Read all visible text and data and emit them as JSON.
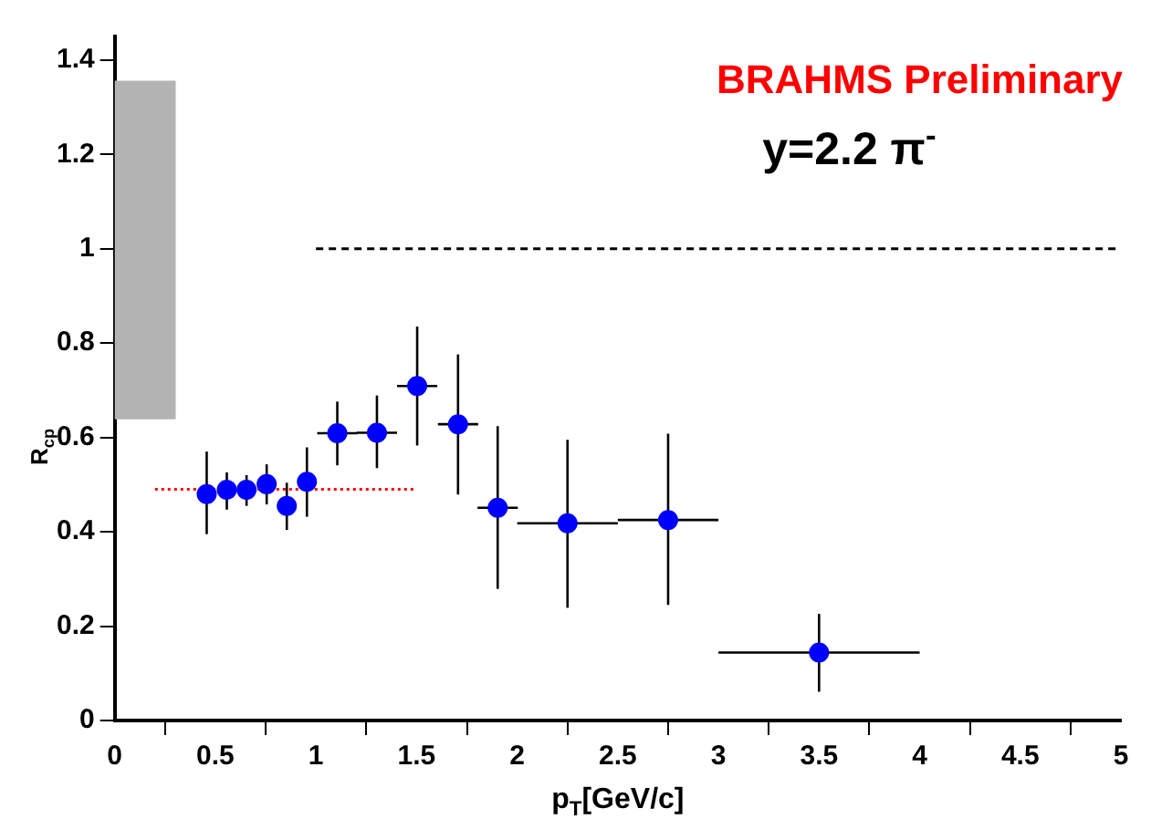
{
  "chart_data": {
    "type": "scatter",
    "xlabel": "p$_{T}$[GeV/c]",
    "ylabel": "R$_{cp}$",
    "annotations": [
      "BRAHMS Preliminary",
      "y=2.2 π$^{-}$"
    ],
    "xlim": [
      0,
      5
    ],
    "xticks": [
      0,
      0.5,
      1,
      1.5,
      2,
      2.5,
      3,
      3.5,
      4,
      4.5,
      5
    ],
    "ylim": [
      0,
      1.45
    ],
    "yticks": [
      0,
      0.2,
      0.4,
      0.6,
      0.8,
      1,
      1.2,
      1.4
    ],
    "grid": false,
    "legend": false,
    "marker": "circle",
    "series": [
      {
        "type": "bar",
        "color": "#b3b3b3",
        "x": [
          0.15
        ],
        "values": [
          0.715
        ],
        "base": [
          0.64
        ]
      },
      {
        "type": "line",
        "color": "#000000",
        "line_style": "dashed",
        "marker": "none",
        "x": [
          1,
          5
        ],
        "values": [
          1,
          1
        ]
      },
      {
        "type": "line",
        "color": "#ff0000",
        "line_style": "dotted",
        "marker": "none",
        "x": [
          0.2,
          1.5
        ],
        "values": [
          0.49,
          0.49
        ]
      },
      {
        "type": "scatter",
        "color": "#0000ff",
        "x": [
          0.457,
          0.557,
          0.655,
          0.755,
          0.855,
          0.955,
          1.106,
          1.303,
          1.503,
          1.706,
          1.903,
          2.25,
          2.75,
          3.5
        ],
        "values": [
          0.48,
          0.489,
          0.489,
          0.501,
          0.455,
          0.506,
          0.609,
          0.61,
          0.709,
          0.628,
          0.451,
          0.418,
          0.425,
          0.144
        ],
        "errors": [
          [
            0.395,
            0.57
          ],
          [
            0.447,
            0.526
          ],
          [
            0.455,
            0.52
          ],
          [
            0.458,
            0.543
          ],
          [
            0.404,
            0.504
          ],
          [
            0.432,
            0.579
          ],
          [
            0.541,
            0.676
          ],
          [
            0.535,
            0.689
          ],
          [
            0.583,
            0.835
          ],
          [
            0.479,
            0.776
          ],
          [
            0.279,
            0.624
          ],
          [
            0.239,
            0.595
          ],
          [
            0.245,
            0.608
          ],
          [
            0.061,
            0.226
          ]
        ],
        "xerrors": [
          null,
          null,
          null,
          null,
          null,
          null,
          0.1,
          0.1,
          0.1,
          0.1,
          0.1,
          0.25,
          0.25,
          0.5
        ]
      }
    ]
  }
}
